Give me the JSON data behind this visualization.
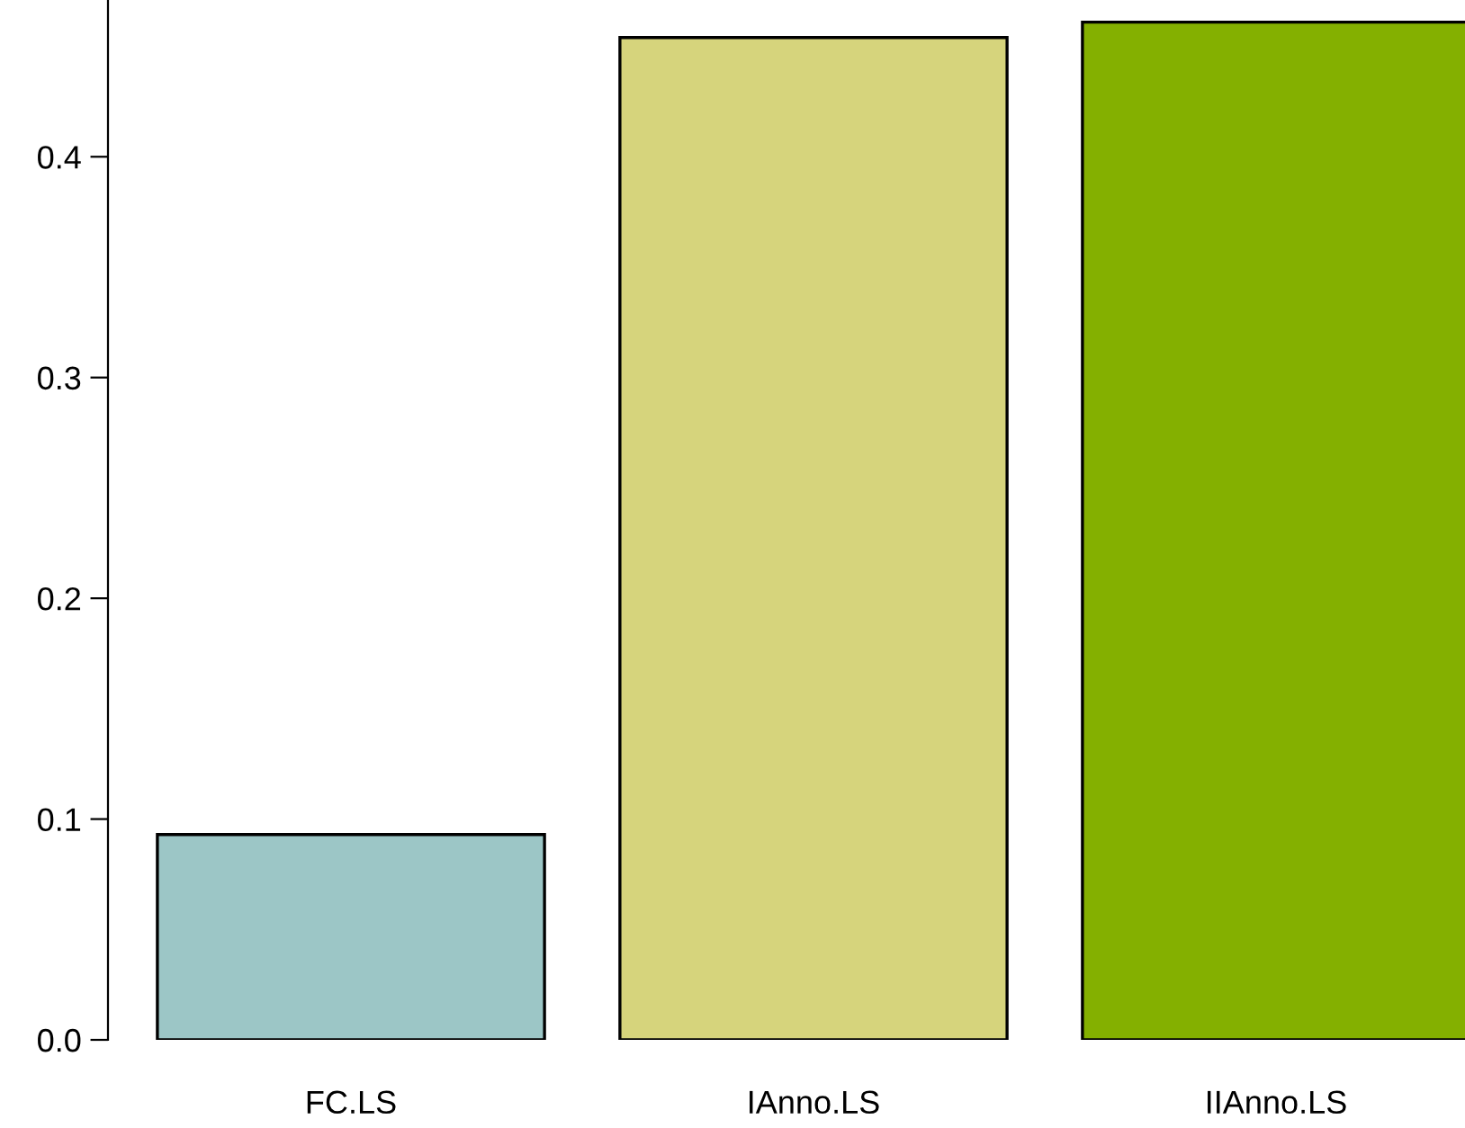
{
  "chart_data": {
    "type": "bar",
    "categories": [
      "FC.LS",
      "IAnno.LS",
      "IIAnno.LS"
    ],
    "values": [
      0.093,
      0.454,
      0.461
    ],
    "colors": [
      "#9cc6c6",
      "#d6d47c",
      "#84b000"
    ],
    "ylim": [
      0,
      0.471
    ],
    "yticks": [
      {
        "value": 0,
        "label": "0.0"
      },
      0.1,
      0.2,
      0.3,
      0.4
    ],
    "grid": false,
    "legend": false
  }
}
